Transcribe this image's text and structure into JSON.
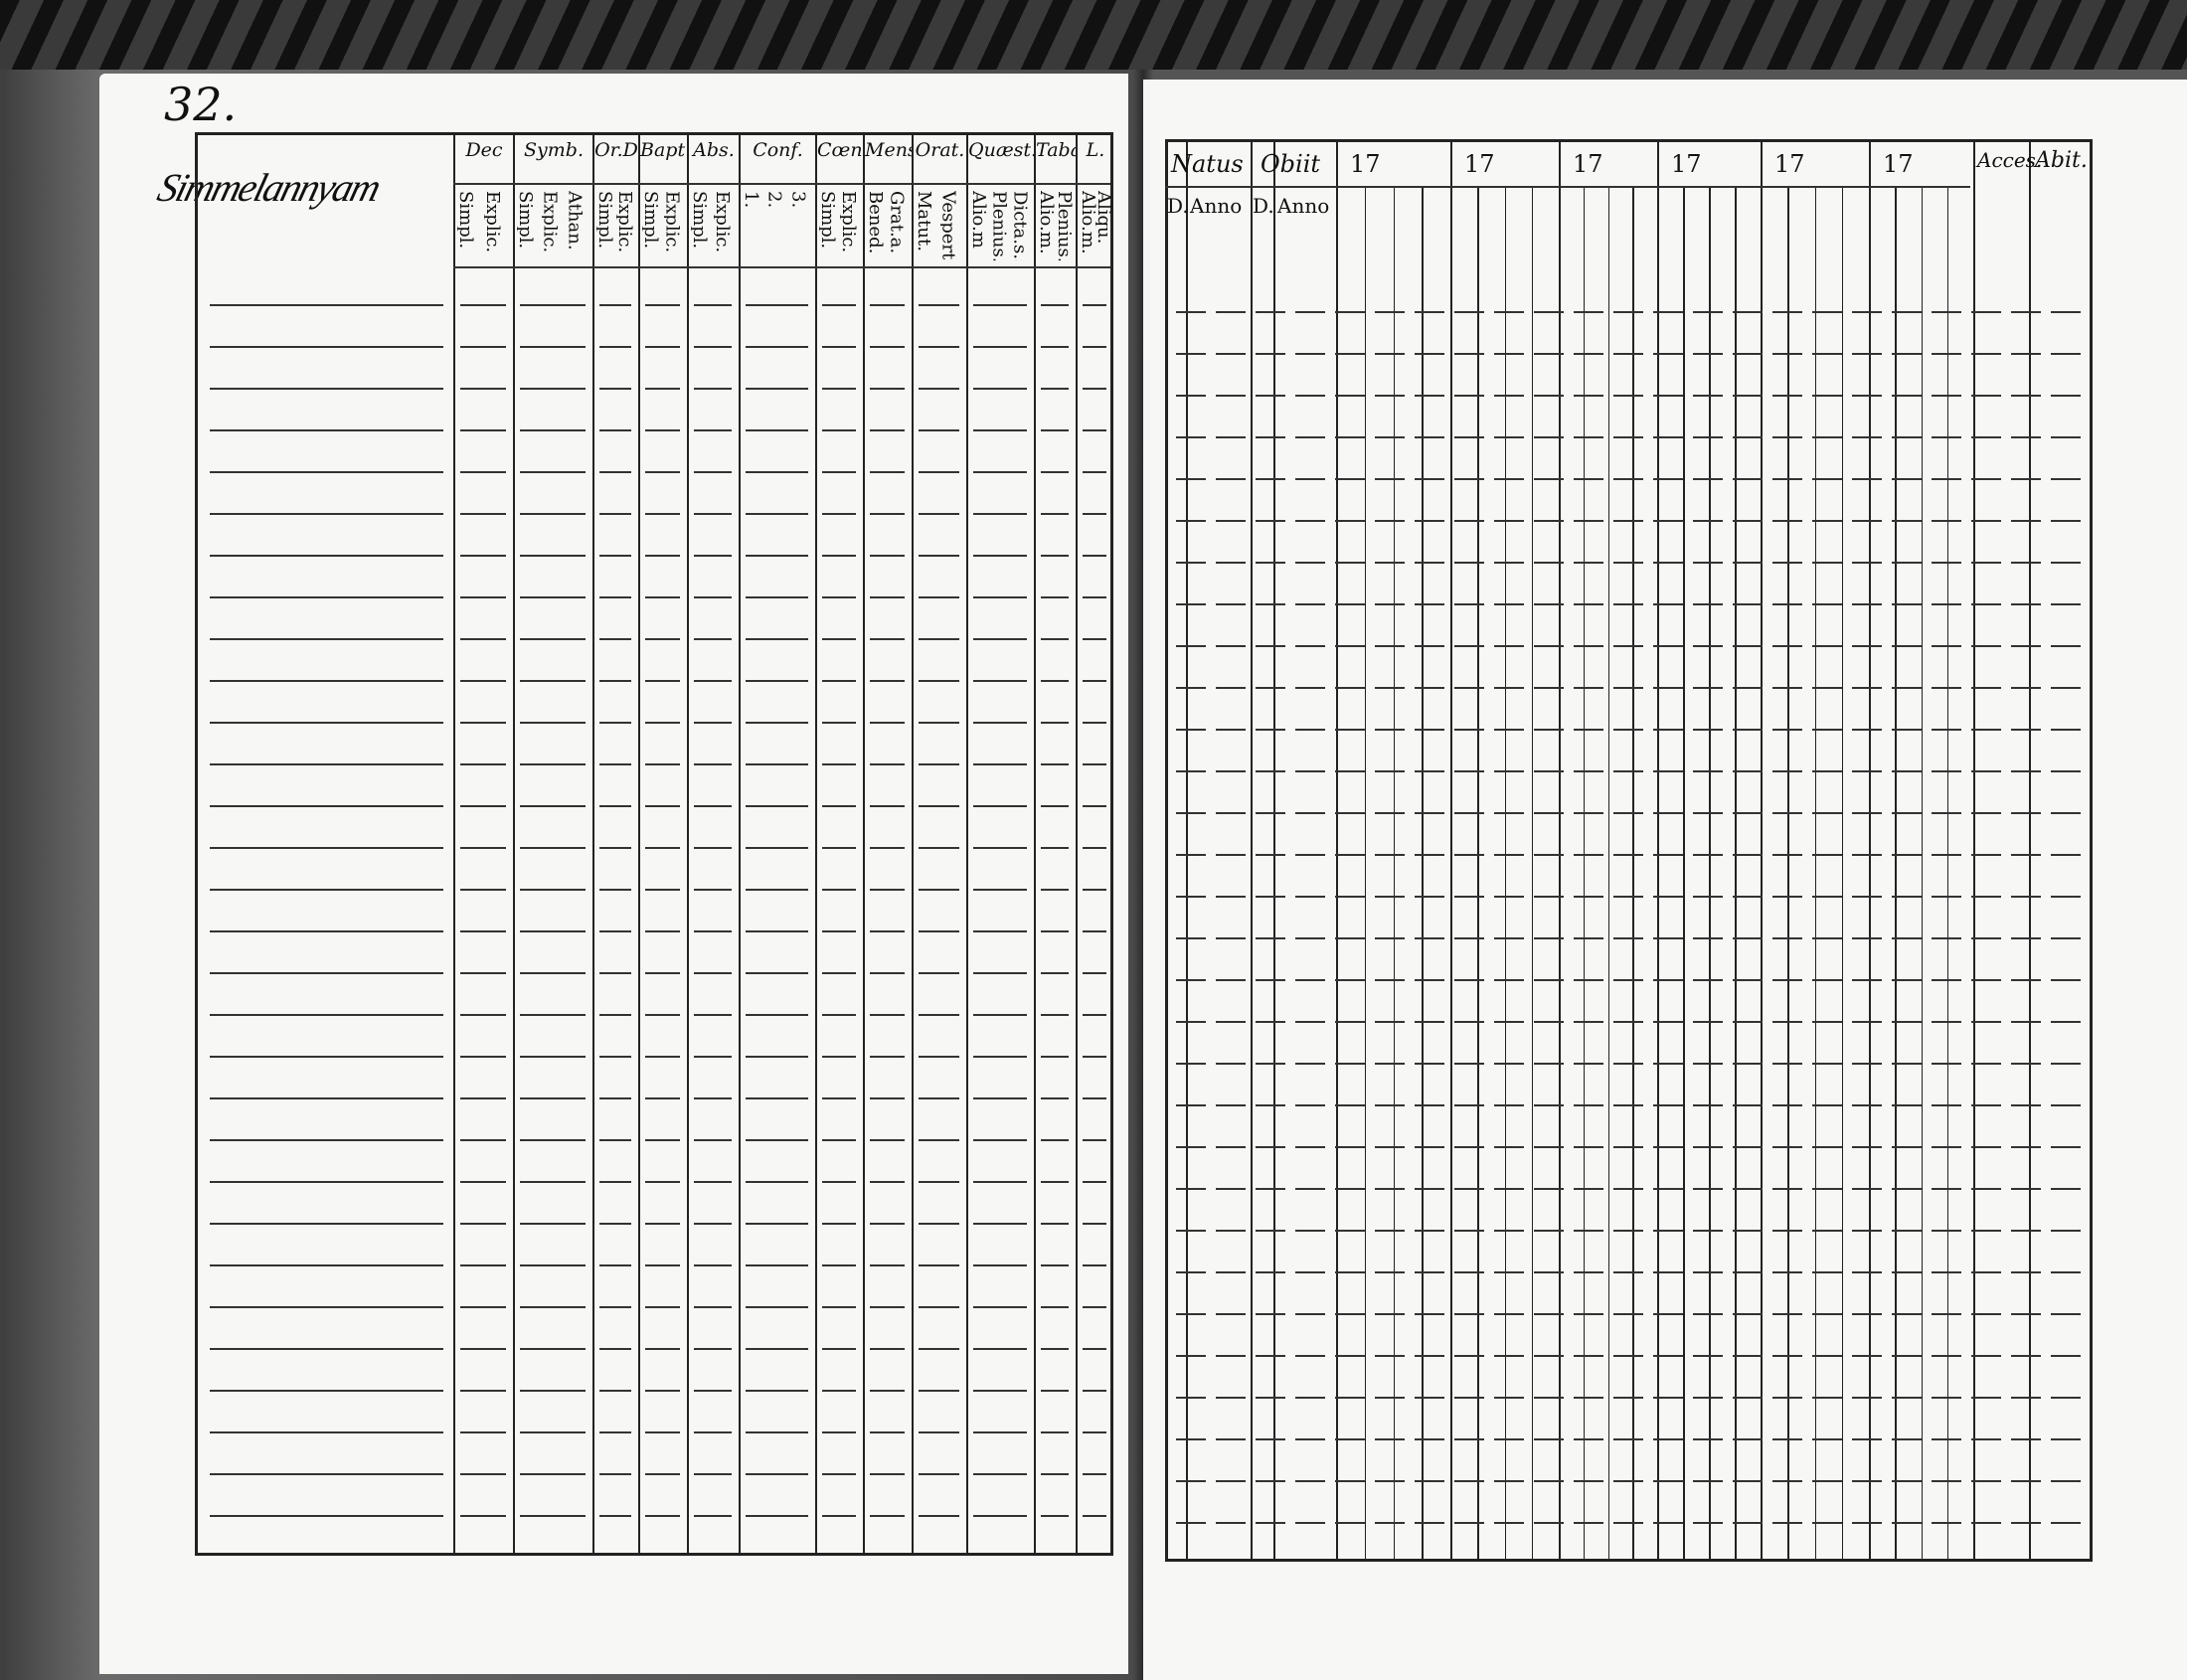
{
  "page_number": "32.",
  "left_signature": "Simmelannyam",
  "left_columns": [
    {
      "header": "Dec",
      "sub": [
        "Explic.",
        "Simpl."
      ]
    },
    {
      "header": "Symb.",
      "sub": [
        "Athan.",
        "Explic.",
        "Simpl."
      ]
    },
    {
      "header": "Or.D",
      "sub": [
        "Explic.",
        "Simpl."
      ]
    },
    {
      "header": "Bapt.",
      "sub": [
        "Explic.",
        "Simpl."
      ]
    },
    {
      "header": "Abs.",
      "sub": [
        "Explic.",
        "Simpl."
      ]
    },
    {
      "header": "Conf.",
      "sub": [
        "3.",
        "2.",
        "1."
      ]
    },
    {
      "header": "Cœn.D",
      "sub": [
        "Explic.",
        "Simpl."
      ]
    },
    {
      "header": "Mens.",
      "sub": [
        "Grat.a.",
        "Bened."
      ]
    },
    {
      "header": "Orat.",
      "sub": [
        "Vespert.",
        "Matut."
      ]
    },
    {
      "header": "Quæst.",
      "sub": [
        "Dicta.s.s.",
        "Plenius.",
        "Alio.m"
      ]
    },
    {
      "header": "Tabæ",
      "sub": [
        "Plenius.",
        "Alio.m."
      ]
    },
    {
      "header": "L.",
      "sub": [
        "Aliqu.",
        "Alio.m."
      ]
    }
  ],
  "right_columns": {
    "natus": {
      "header": "Natus",
      "sub": [
        "D.",
        "Anno"
      ]
    },
    "obiit": {
      "header": "Obiit",
      "sub": [
        "D.",
        "Anno"
      ]
    },
    "years": [
      "17",
      "17",
      "17",
      "17",
      "17",
      "17"
    ],
    "acces": "Acces.",
    "abit": "Abit."
  }
}
